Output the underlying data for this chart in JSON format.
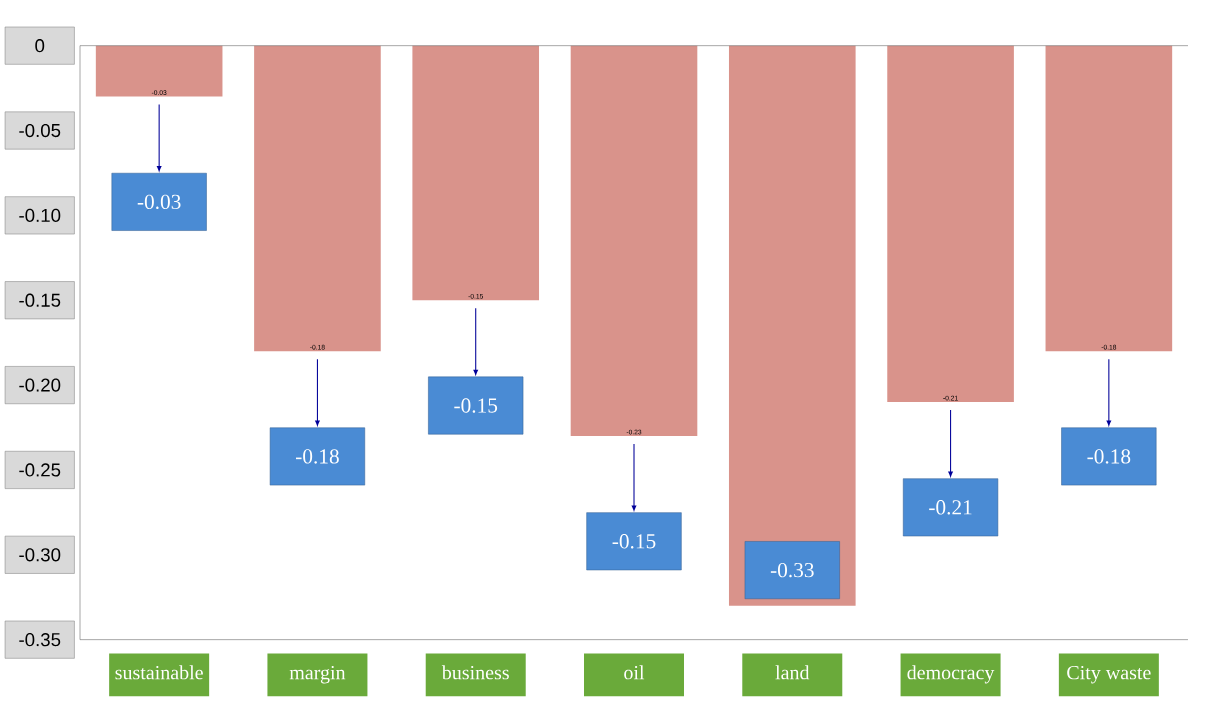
{
  "chart_data": {
    "type": "bar",
    "categories": [
      "sustainable",
      "margin",
      "business",
      "oil",
      "land",
      "democracy",
      "City waste"
    ],
    "values": [
      -0.03,
      -0.18,
      -0.15,
      -0.23,
      -0.33,
      -0.21,
      -0.18
    ],
    "color": "#d9938b",
    "value_labels": [
      "-0.03",
      "-0.18",
      "-0.15",
      "-0.23",
      null,
      "-0.21",
      "-0.18"
    ],
    "ylim": [
      -0.35,
      0
    ],
    "yticks": [
      0,
      -0.05,
      {
        "value": -0.1,
        "label": "-0.10"
      },
      -0.15,
      {
        "value": -0.2,
        "label": "-0.20"
      },
      -0.25,
      {
        "value": -0.3,
        "label": "-0.30"
      },
      -0.35
    ],
    "annotations": [
      "-0.03",
      "-0.18",
      "-0.15",
      "-0.15",
      "-0.33",
      "-0.21",
      "-0.18"
    ]
  }
}
